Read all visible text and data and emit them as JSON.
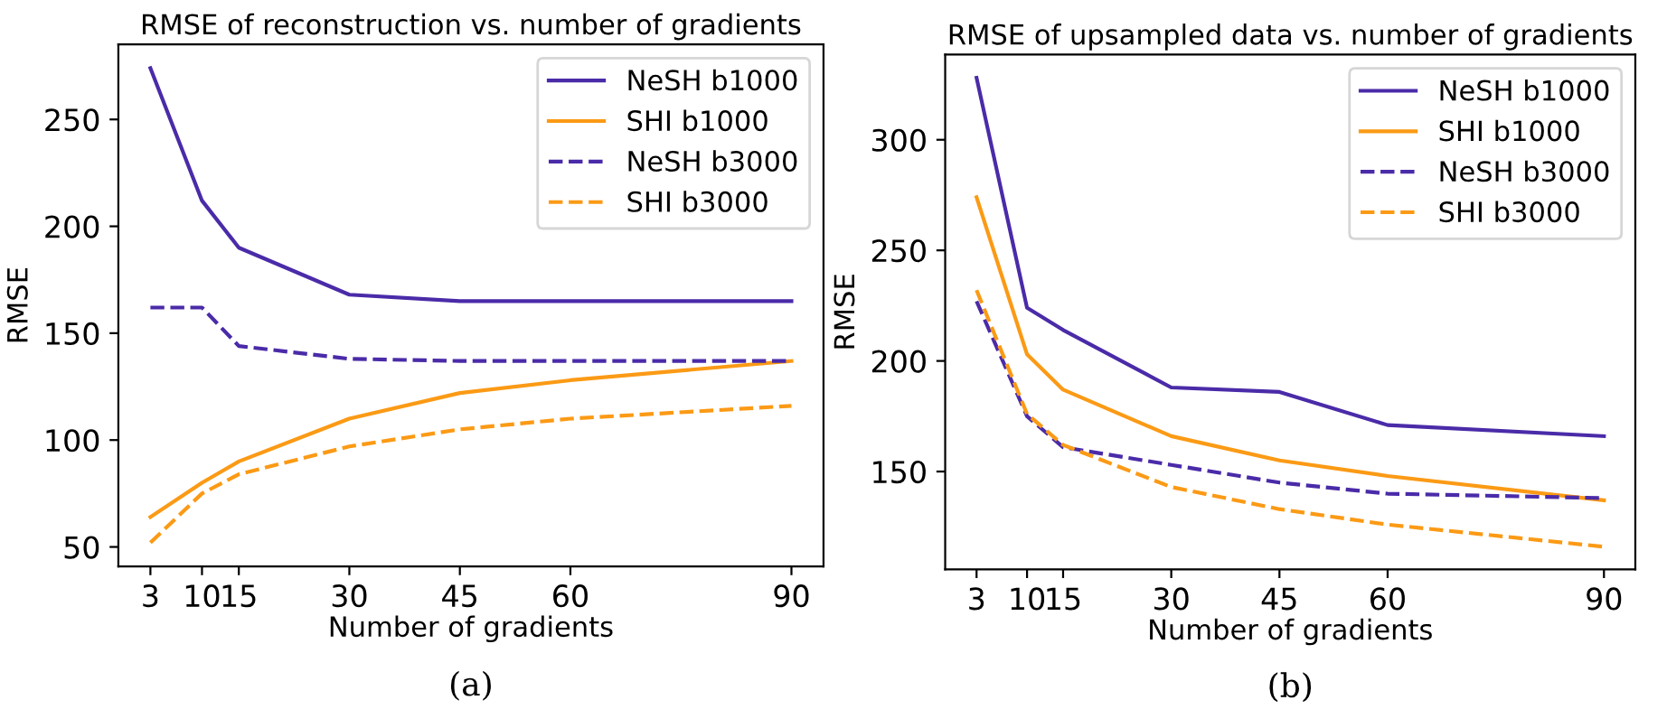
{
  "chart_data": [
    {
      "type": "line",
      "title": "RMSE of reconstruction vs. number of gradients",
      "xlabel": "Number of gradients",
      "ylabel": "RMSE",
      "x": [
        3,
        10,
        15,
        30,
        45,
        60,
        90
      ],
      "xlim": [
        -1.35,
        94.35
      ],
      "xticks": [
        3,
        10,
        15,
        30,
        45,
        60,
        90
      ],
      "ylim": [
        40.9,
        285.1
      ],
      "yticks": [
        50,
        100,
        150,
        200,
        250
      ],
      "legend": "top right",
      "grid": false,
      "annotations": [
        "(a)"
      ],
      "series": [
        {
          "name": "NeSH b1000",
          "color": "#4a2ba8",
          "line_style": "solid",
          "values": [
            274,
            212,
            190,
            168,
            165,
            165,
            165
          ]
        },
        {
          "name": "SHI b1000",
          "color": "#fb9a15",
          "line_style": "solid",
          "values": [
            64,
            80,
            90,
            110,
            122,
            128,
            137
          ]
        },
        {
          "name": "NeSH b3000",
          "color": "#4a2ba8",
          "line_style": "dashed",
          "values": [
            162,
            162,
            144,
            138,
            137,
            137,
            137
          ]
        },
        {
          "name": "SHI b3000",
          "color": "#fb9a15",
          "line_style": "dashed",
          "values": [
            52,
            75,
            84,
            97,
            105,
            110,
            116
          ]
        }
      ]
    },
    {
      "type": "line",
      "title": "RMSE of upsampled data vs. number of gradients",
      "xlabel": "Number of gradients",
      "ylabel": "RMSE",
      "x": [
        3,
        10,
        15,
        30,
        45,
        60,
        90
      ],
      "xlim": [
        -1.35,
        94.35
      ],
      "xticks": [
        3,
        10,
        15,
        30,
        45,
        60,
        90
      ],
      "ylim": [
        105.8,
        338.5
      ],
      "yticks": [
        150,
        200,
        250,
        300
      ],
      "legend": "top right",
      "grid": false,
      "annotations": [
        "(b)"
      ],
      "series": [
        {
          "name": "NeSH b1000",
          "color": "#4a2ba8",
          "line_style": "solid",
          "values": [
            328,
            224,
            214,
            188,
            186,
            171,
            166
          ]
        },
        {
          "name": "SHI b1000",
          "color": "#fb9a15",
          "line_style": "solid",
          "values": [
            274,
            203,
            187,
            166,
            155,
            148,
            137
          ]
        },
        {
          "name": "NeSH b3000",
          "color": "#4a2ba8",
          "line_style": "dashed",
          "values": [
            227,
            175,
            161,
            153,
            145,
            140,
            138
          ]
        },
        {
          "name": "SHI b3000",
          "color": "#fb9a15",
          "line_style": "dashed",
          "values": [
            232,
            176,
            162,
            143,
            133,
            126,
            116
          ]
        }
      ]
    }
  ]
}
